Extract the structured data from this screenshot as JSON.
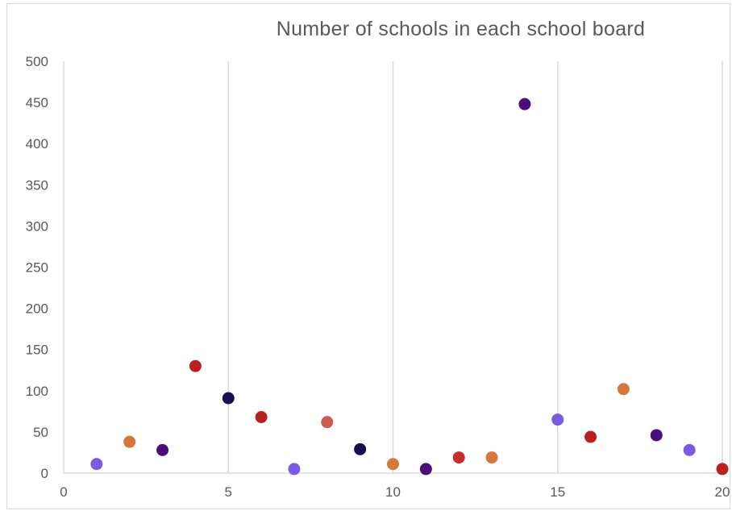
{
  "chart_data": {
    "type": "scatter",
    "title": "Number of schools in each school board",
    "xlabel": "",
    "ylabel": "",
    "xlim": [
      0,
      20
    ],
    "ylim": [
      0,
      500
    ],
    "x_ticks": [
      0,
      5,
      10,
      15,
      20
    ],
    "y_ticks": [
      0,
      50,
      100,
      150,
      200,
      250,
      300,
      350,
      400,
      450,
      500
    ],
    "grid": "vertical",
    "points": [
      {
        "x": 1,
        "y": 11,
        "color": "#7b5be0"
      },
      {
        "x": 2,
        "y": 38,
        "color": "#d4783b"
      },
      {
        "x": 3,
        "y": 28,
        "color": "#4a0e7a"
      },
      {
        "x": 4,
        "y": 130,
        "color": "#bb2020"
      },
      {
        "x": 5,
        "y": 91,
        "color": "#15104f"
      },
      {
        "x": 6,
        "y": 68,
        "color": "#b52222"
      },
      {
        "x": 7,
        "y": 5,
        "color": "#7b5be0"
      },
      {
        "x": 8,
        "y": 62,
        "color": "#cc5a50"
      },
      {
        "x": 9,
        "y": 29,
        "color": "#15104f"
      },
      {
        "x": 10,
        "y": 11,
        "color": "#d4783b"
      },
      {
        "x": 11,
        "y": 5,
        "color": "#4a0e7a"
      },
      {
        "x": 12,
        "y": 19,
        "color": "#c42f2f"
      },
      {
        "x": 13,
        "y": 19,
        "color": "#d4783b"
      },
      {
        "x": 14,
        "y": 448,
        "color": "#4a0e7a"
      },
      {
        "x": 15,
        "y": 65,
        "color": "#7b5be0"
      },
      {
        "x": 16,
        "y": 44,
        "color": "#bb2020"
      },
      {
        "x": 17,
        "y": 102,
        "color": "#d4783b"
      },
      {
        "x": 18,
        "y": 46,
        "color": "#4a0e7a"
      },
      {
        "x": 19,
        "y": 28,
        "color": "#7b5be0"
      },
      {
        "x": 20,
        "y": 5,
        "color": "#bb2020"
      }
    ]
  }
}
